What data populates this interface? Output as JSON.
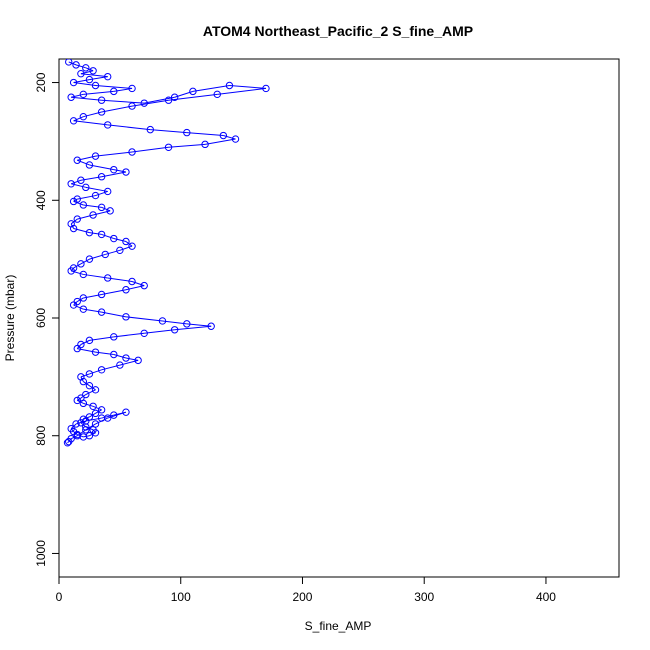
{
  "chart_data": {
    "type": "scatter",
    "title": "ATOM4 Northeast_Pacific_2 S_fine_AMP",
    "xlabel": "S_fine_AMP",
    "ylabel": "Pressure (mbar)",
    "xlim": [
      0,
      460
    ],
    "ylim": [
      1040,
      160
    ],
    "y_inverted": true,
    "x_ticks": [
      0,
      100,
      200,
      300,
      400
    ],
    "y_ticks": [
      200,
      400,
      600,
      800,
      1000
    ],
    "grid": false,
    "series_color": "#0000ff",
    "series": [
      {
        "x": [
          8,
          14,
          22,
          28,
          18,
          40,
          25,
          12,
          30,
          60,
          45,
          20,
          10,
          35,
          70,
          95,
          110,
          140,
          170,
          130,
          90,
          60,
          35,
          20,
          12,
          40,
          75,
          105,
          135,
          145,
          120,
          90,
          60,
          30,
          15,
          25,
          45,
          55,
          35,
          18,
          10,
          22,
          40,
          30,
          15,
          12,
          20,
          35,
          42,
          28,
          15,
          10,
          12,
          25,
          35,
          45,
          55,
          60,
          50,
          38,
          25,
          18,
          12,
          10,
          20,
          40,
          60,
          70,
          55,
          35,
          20,
          15,
          12,
          20,
          35,
          55,
          85,
          105,
          125,
          95,
          70,
          45,
          25,
          18,
          15,
          30,
          45,
          55,
          65,
          50,
          35,
          25,
          18,
          20,
          25,
          30,
          22,
          18,
          15,
          20,
          28,
          35,
          30,
          25,
          20,
          18,
          22,
          28,
          30,
          25,
          20,
          15,
          12,
          10,
          14,
          22,
          35,
          45,
          55,
          40,
          30,
          22,
          15,
          10,
          8,
          7
        ],
        "y": [
          165,
          170,
          175,
          180,
          185,
          190,
          195,
          200,
          205,
          210,
          215,
          220,
          225,
          230,
          235,
          225,
          215,
          205,
          210,
          220,
          230,
          240,
          250,
          258,
          265,
          272,
          280,
          285,
          290,
          296,
          305,
          310,
          318,
          325,
          332,
          340,
          348,
          352,
          360,
          366,
          372,
          378,
          385,
          392,
          398,
          402,
          408,
          412,
          418,
          425,
          432,
          440,
          448,
          455,
          458,
          465,
          470,
          478,
          485,
          492,
          500,
          508,
          515,
          520,
          526,
          532,
          538,
          545,
          552,
          560,
          566,
          572,
          578,
          585,
          590,
          598,
          605,
          610,
          614,
          620,
          626,
          632,
          638,
          645,
          652,
          658,
          662,
          668,
          672,
          680,
          688,
          695,
          700,
          708,
          715,
          722,
          730,
          736,
          740,
          745,
          750,
          756,
          762,
          768,
          772,
          778,
          785,
          790,
          795,
          800,
          802,
          798,
          793,
          788,
          780,
          775,
          770,
          765,
          760,
          770,
          780,
          790,
          800,
          805,
          810,
          812
        ]
      }
    ]
  }
}
